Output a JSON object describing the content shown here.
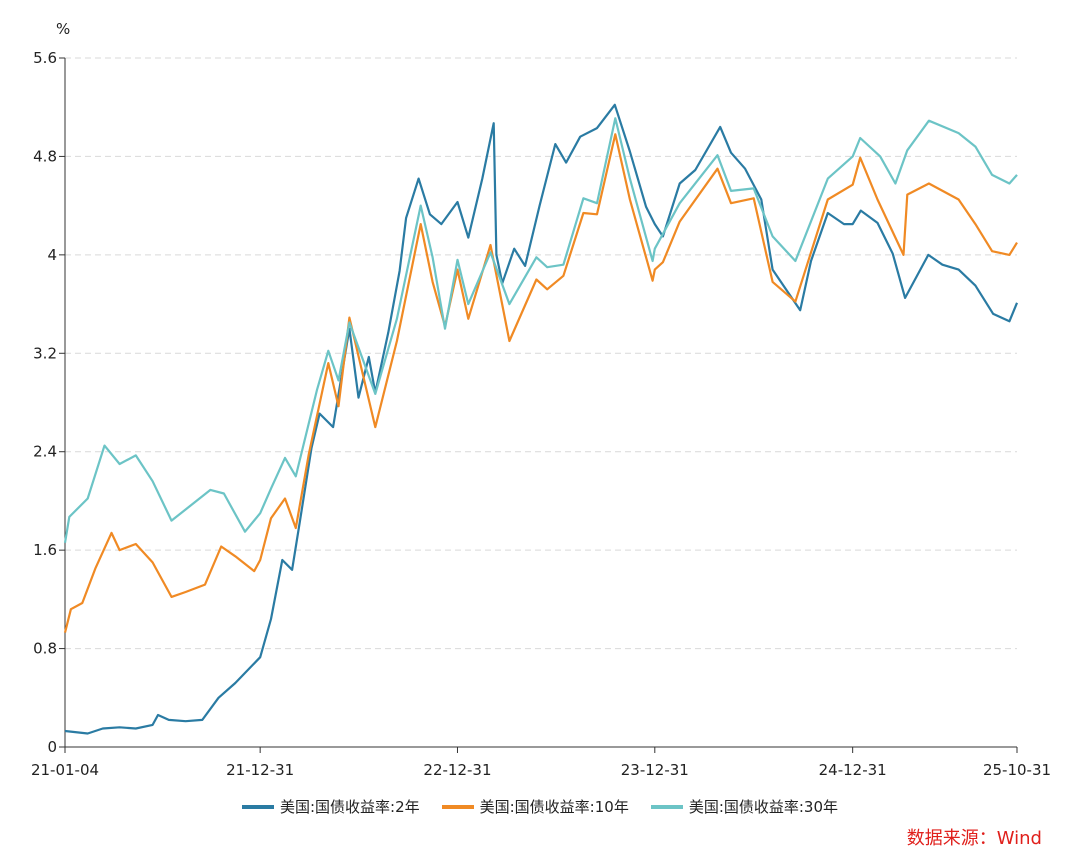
{
  "chart_data": {
    "type": "line",
    "unit_label": "%",
    "ylim": [
      0,
      5.6
    ],
    "yticks": [
      "0",
      "0.8",
      "1.6",
      "2.4",
      "3.2",
      "4",
      "4.8",
      "5.6"
    ],
    "xticks": [
      "21-01-04",
      "21-12-31",
      "22-12-31",
      "23-12-31",
      "24-12-31",
      "25-10-31"
    ],
    "x_range": [
      "2021-01-04",
      "2025-10-31"
    ],
    "grid": "horizontal dashed",
    "legend_position": "bottom",
    "series": [
      {
        "name": "美国:国债收益率:2年",
        "color": "#2a7ba3",
        "points": [
          [
            "2021-01-04",
            0.13
          ],
          [
            "2021-02-15",
            0.11
          ],
          [
            "2021-03-15",
            0.15
          ],
          [
            "2021-04-15",
            0.16
          ],
          [
            "2021-05-15",
            0.15
          ],
          [
            "2021-06-15",
            0.18
          ],
          [
            "2021-06-25",
            0.26
          ],
          [
            "2021-07-15",
            0.22
          ],
          [
            "2021-08-15",
            0.21
          ],
          [
            "2021-09-15",
            0.22
          ],
          [
            "2021-10-15",
            0.4
          ],
          [
            "2021-11-15",
            0.52
          ],
          [
            "2021-12-31",
            0.73
          ],
          [
            "2022-01-20",
            1.04
          ],
          [
            "2022-02-10",
            1.52
          ],
          [
            "2022-02-28",
            1.44
          ],
          [
            "2022-03-15",
            1.85
          ],
          [
            "2022-04-05",
            2.43
          ],
          [
            "2022-04-20",
            2.71
          ],
          [
            "2022-05-15",
            2.6
          ],
          [
            "2022-06-14",
            3.4
          ],
          [
            "2022-07-01",
            2.84
          ],
          [
            "2022-07-20",
            3.17
          ],
          [
            "2022-08-01",
            2.88
          ],
          [
            "2022-08-25",
            3.37
          ],
          [
            "2022-09-15",
            3.87
          ],
          [
            "2022-09-27",
            4.3
          ],
          [
            "2022-10-20",
            4.62
          ],
          [
            "2022-11-10",
            4.33
          ],
          [
            "2022-12-01",
            4.25
          ],
          [
            "2022-12-31",
            4.43
          ],
          [
            "2023-01-20",
            4.14
          ],
          [
            "2023-02-15",
            4.62
          ],
          [
            "2023-03-08",
            5.07
          ],
          [
            "2023-03-13",
            4.0
          ],
          [
            "2023-03-24",
            3.77
          ],
          [
            "2023-04-15",
            4.05
          ],
          [
            "2023-05-05",
            3.91
          ],
          [
            "2023-06-01",
            4.4
          ],
          [
            "2023-06-30",
            4.9
          ],
          [
            "2023-07-20",
            4.75
          ],
          [
            "2023-08-15",
            4.96
          ],
          [
            "2023-09-15",
            5.03
          ],
          [
            "2023-10-18",
            5.22
          ],
          [
            "2023-11-15",
            4.84
          ],
          [
            "2023-12-15",
            4.39
          ],
          [
            "2023-12-31",
            4.25
          ],
          [
            "2024-01-15",
            4.15
          ],
          [
            "2024-02-15",
            4.58
          ],
          [
            "2024-03-15",
            4.69
          ],
          [
            "2024-04-30",
            5.04
          ],
          [
            "2024-05-20",
            4.83
          ],
          [
            "2024-06-15",
            4.7
          ],
          [
            "2024-07-15",
            4.45
          ],
          [
            "2024-08-05",
            3.88
          ],
          [
            "2024-09-25",
            3.55
          ],
          [
            "2024-10-15",
            3.95
          ],
          [
            "2024-11-15",
            4.34
          ],
          [
            "2024-12-15",
            4.25
          ],
          [
            "2024-12-31",
            4.25
          ],
          [
            "2025-01-15",
            4.36
          ],
          [
            "2025-02-15",
            4.26
          ],
          [
            "2025-03-15",
            4.01
          ],
          [
            "2025-04-07",
            3.65
          ],
          [
            "2025-05-20",
            4.0
          ],
          [
            "2025-06-15",
            3.92
          ],
          [
            "2025-07-15",
            3.88
          ],
          [
            "2025-08-15",
            3.75
          ],
          [
            "2025-09-17",
            3.52
          ],
          [
            "2025-10-17",
            3.46
          ],
          [
            "2025-10-31",
            3.61
          ]
        ]
      },
      {
        "name": "美国:国债收益率:10年",
        "color": "#f08a24",
        "points": [
          [
            "2021-01-04",
            0.93
          ],
          [
            "2021-01-15",
            1.12
          ],
          [
            "2021-02-05",
            1.17
          ],
          [
            "2021-03-01",
            1.45
          ],
          [
            "2021-03-31",
            1.74
          ],
          [
            "2021-04-15",
            1.6
          ],
          [
            "2021-05-15",
            1.65
          ],
          [
            "2021-06-15",
            1.5
          ],
          [
            "2021-07-20",
            1.22
          ],
          [
            "2021-08-15",
            1.26
          ],
          [
            "2021-09-20",
            1.32
          ],
          [
            "2021-10-20",
            1.63
          ],
          [
            "2021-11-15",
            1.55
          ],
          [
            "2021-12-20",
            1.43
          ],
          [
            "2021-12-31",
            1.52
          ],
          [
            "2022-01-20",
            1.86
          ],
          [
            "2022-02-15",
            2.02
          ],
          [
            "2022-03-07",
            1.78
          ],
          [
            "2022-03-31",
            2.38
          ],
          [
            "2022-05-06",
            3.12
          ],
          [
            "2022-05-25",
            2.77
          ],
          [
            "2022-06-14",
            3.49
          ],
          [
            "2022-08-01",
            2.6
          ],
          [
            "2022-09-10",
            3.3
          ],
          [
            "2022-10-24",
            4.25
          ],
          [
            "2022-11-15",
            3.78
          ],
          [
            "2022-12-08",
            3.42
          ],
          [
            "2022-12-31",
            3.88
          ],
          [
            "2023-01-20",
            3.48
          ],
          [
            "2023-03-02",
            4.08
          ],
          [
            "2023-04-06",
            3.3
          ],
          [
            "2023-05-26",
            3.8
          ],
          [
            "2023-06-15",
            3.72
          ],
          [
            "2023-07-15",
            3.83
          ],
          [
            "2023-08-21",
            4.34
          ],
          [
            "2023-09-15",
            4.33
          ],
          [
            "2023-10-19",
            4.98
          ],
          [
            "2023-11-15",
            4.45
          ],
          [
            "2023-12-27",
            3.79
          ],
          [
            "2023-12-31",
            3.88
          ],
          [
            "2024-01-15",
            3.94
          ],
          [
            "2024-02-15",
            4.27
          ],
          [
            "2024-04-25",
            4.7
          ],
          [
            "2024-05-20",
            4.42
          ],
          [
            "2024-07-01",
            4.46
          ],
          [
            "2024-08-05",
            3.78
          ],
          [
            "2024-09-16",
            3.62
          ],
          [
            "2024-11-15",
            4.45
          ],
          [
            "2024-12-31",
            4.57
          ],
          [
            "2025-01-14",
            4.79
          ],
          [
            "2025-02-15",
            4.45
          ],
          [
            "2025-04-04",
            4.0
          ],
          [
            "2025-04-11",
            4.49
          ],
          [
            "2025-05-21",
            4.58
          ],
          [
            "2025-07-15",
            4.45
          ],
          [
            "2025-08-15",
            4.25
          ],
          [
            "2025-09-15",
            4.03
          ],
          [
            "2025-10-17",
            4.0
          ],
          [
            "2025-10-31",
            4.1
          ]
        ]
      },
      {
        "name": "美国:国债收益率:30年",
        "color": "#6cc4c6",
        "points": [
          [
            "2021-01-04",
            1.66
          ],
          [
            "2021-01-12",
            1.87
          ],
          [
            "2021-02-15",
            2.02
          ],
          [
            "2021-03-18",
            2.45
          ],
          [
            "2021-04-15",
            2.3
          ],
          [
            "2021-05-15",
            2.37
          ],
          [
            "2021-06-15",
            2.16
          ],
          [
            "2021-07-20",
            1.84
          ],
          [
            "2021-08-15",
            1.93
          ],
          [
            "2021-09-30",
            2.09
          ],
          [
            "2021-10-25",
            2.06
          ],
          [
            "2021-12-03",
            1.75
          ],
          [
            "2021-12-31",
            1.9
          ],
          [
            "2022-01-20",
            2.1
          ],
          [
            "2022-02-15",
            2.35
          ],
          [
            "2022-03-07",
            2.2
          ],
          [
            "2022-04-15",
            2.9
          ],
          [
            "2022-05-06",
            3.22
          ],
          [
            "2022-05-25",
            2.98
          ],
          [
            "2022-06-14",
            3.45
          ],
          [
            "2022-08-01",
            2.87
          ],
          [
            "2022-09-10",
            3.48
          ],
          [
            "2022-10-24",
            4.4
          ],
          [
            "2022-11-15",
            3.98
          ],
          [
            "2022-12-08",
            3.4
          ],
          [
            "2022-12-31",
            3.96
          ],
          [
            "2023-01-20",
            3.6
          ],
          [
            "2023-03-02",
            4.02
          ],
          [
            "2023-04-06",
            3.6
          ],
          [
            "2023-05-26",
            3.98
          ],
          [
            "2023-06-15",
            3.9
          ],
          [
            "2023-07-15",
            3.92
          ],
          [
            "2023-08-21",
            4.46
          ],
          [
            "2023-09-15",
            4.42
          ],
          [
            "2023-10-19",
            5.11
          ],
          [
            "2023-11-15",
            4.62
          ],
          [
            "2023-12-27",
            3.95
          ],
          [
            "2023-12-31",
            4.05
          ],
          [
            "2024-02-15",
            4.42
          ],
          [
            "2024-04-25",
            4.81
          ],
          [
            "2024-05-20",
            4.52
          ],
          [
            "2024-07-01",
            4.54
          ],
          [
            "2024-08-05",
            4.15
          ],
          [
            "2024-09-16",
            3.95
          ],
          [
            "2024-11-15",
            4.62
          ],
          [
            "2024-12-31",
            4.8
          ],
          [
            "2025-01-14",
            4.95
          ],
          [
            "2025-02-20",
            4.8
          ],
          [
            "2025-03-20",
            4.58
          ],
          [
            "2025-04-11",
            4.85
          ],
          [
            "2025-05-21",
            5.09
          ],
          [
            "2025-07-15",
            4.99
          ],
          [
            "2025-08-15",
            4.88
          ],
          [
            "2025-09-15",
            4.65
          ],
          [
            "2025-10-17",
            4.58
          ],
          [
            "2025-10-31",
            4.65
          ]
        ]
      }
    ]
  },
  "source_label": "数据来源：Wind"
}
